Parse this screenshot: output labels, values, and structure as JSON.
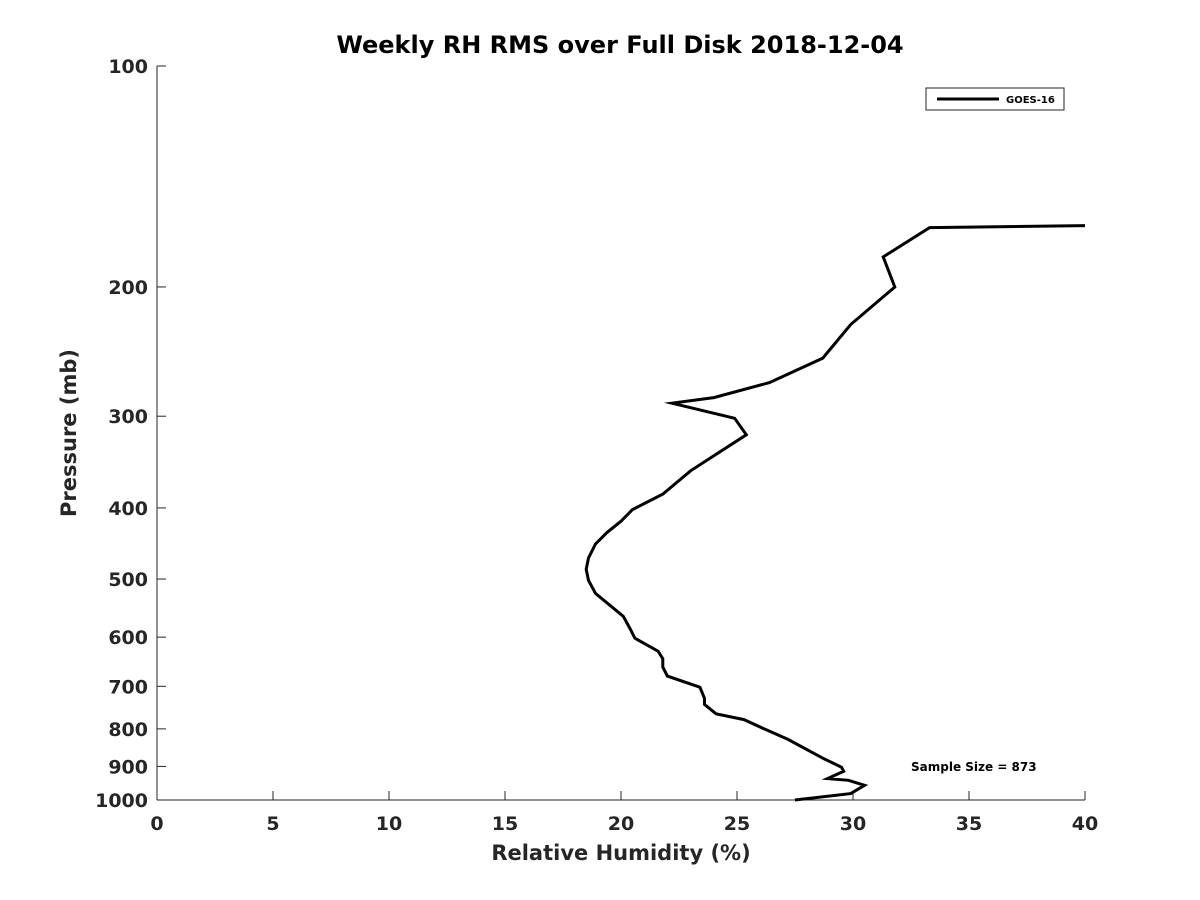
{
  "chart_data": {
    "type": "line",
    "title": "Weekly RH RMS over Full Disk 2018-12-04",
    "xlabel": "Relative Humidity (%)",
    "ylabel": "Pressure (mb)",
    "xlim": [
      0,
      40
    ],
    "ylim": [
      100,
      1000
    ],
    "yscale": "log",
    "y_reversed": true,
    "grid": false,
    "legend_position": "top-right",
    "x_ticks": [
      0,
      5,
      10,
      15,
      20,
      25,
      30,
      35,
      40
    ],
    "x_tick_labels": [
      "0",
      "5",
      "10",
      "15",
      "20",
      "25",
      "30",
      "35",
      "40"
    ],
    "y_ticks": [
      100,
      200,
      300,
      400,
      500,
      600,
      700,
      800,
      900,
      1000
    ],
    "y_tick_labels": [
      "100",
      "200",
      "300",
      "400",
      "500",
      "600",
      "700",
      "800",
      "900",
      "1000"
    ],
    "series": [
      {
        "name": "GOES-16",
        "color": "#000000",
        "points": [
          [
            40.0,
            165
          ],
          [
            33.3,
            166
          ],
          [
            31.3,
            182
          ],
          [
            31.8,
            200
          ],
          [
            29.9,
            225
          ],
          [
            28.7,
            250
          ],
          [
            26.4,
            270
          ],
          [
            24.0,
            283
          ],
          [
            22.2,
            288
          ],
          [
            24.9,
            302
          ],
          [
            25.4,
            318
          ],
          [
            23.0,
            356
          ],
          [
            21.8,
            383
          ],
          [
            20.5,
            402
          ],
          [
            20.0,
            417
          ],
          [
            19.4,
            432
          ],
          [
            18.9,
            448
          ],
          [
            18.6,
            468
          ],
          [
            18.5,
            485
          ],
          [
            18.6,
            502
          ],
          [
            18.9,
            523
          ],
          [
            20.1,
            562
          ],
          [
            20.4,
            585
          ],
          [
            20.6,
            602
          ],
          [
            21.6,
            627
          ],
          [
            21.8,
            642
          ],
          [
            21.8,
            659
          ],
          [
            22.0,
            678
          ],
          [
            23.4,
            702
          ],
          [
            23.6,
            727
          ],
          [
            23.6,
            741
          ],
          [
            24.1,
            763
          ],
          [
            25.3,
            777
          ],
          [
            26.1,
            798
          ],
          [
            27.2,
            827
          ],
          [
            28.7,
            877
          ],
          [
            29.5,
            902
          ],
          [
            29.6,
            914
          ],
          [
            28.9,
            935
          ],
          [
            29.8,
            940
          ],
          [
            30.5,
            955
          ],
          [
            29.9,
            980
          ],
          [
            27.5,
            1000
          ]
        ]
      }
    ],
    "annotations": [
      {
        "text": "Sample Size = 873",
        "position": "bottom-right"
      }
    ]
  }
}
